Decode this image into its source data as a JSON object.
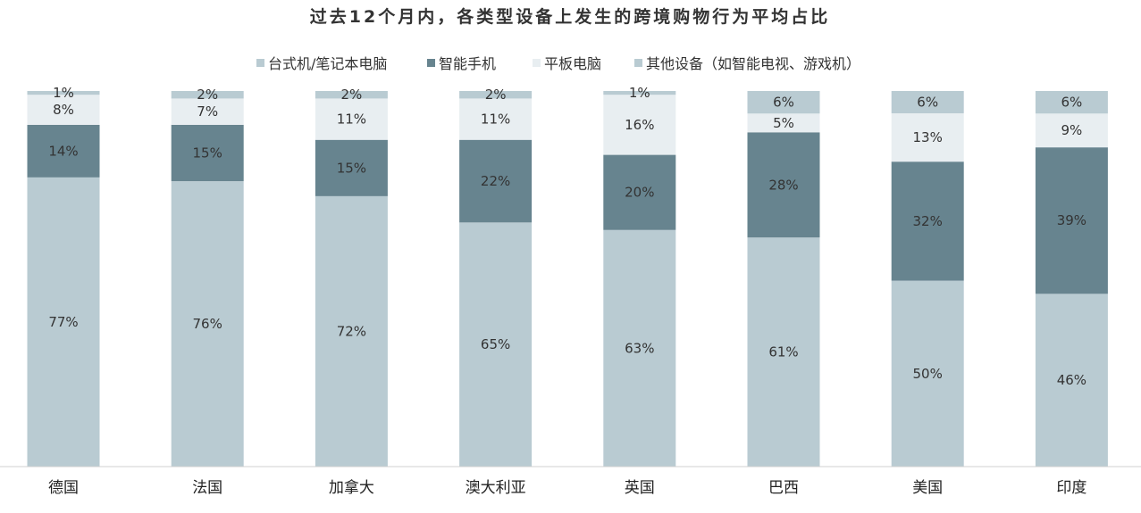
{
  "chart_data": {
    "type": "bar",
    "stacked": true,
    "title": "过去12个月内，各类型设备上发生的跨境购物行为平均占比",
    "categories": [
      "德国",
      "法国",
      "加拿大",
      "澳大利亚",
      "英国",
      "巴西",
      "美国",
      "印度"
    ],
    "series": [
      {
        "name": "台式机/笔记本电脑",
        "color": "#b9cbd2",
        "values": [
          77,
          76,
          72,
          65,
          63,
          61,
          50,
          46
        ],
        "labels": [
          "77%",
          "76%",
          "72%",
          "65%",
          "63%",
          "61%",
          "50%",
          "46%"
        ]
      },
      {
        "name": "智能手机",
        "color": "#67848f",
        "values": [
          14,
          15,
          15,
          22,
          20,
          28,
          32,
          39
        ],
        "labels": [
          "14%",
          "15%",
          "15%",
          "22%",
          "20%",
          "28%",
          "32%",
          "39%"
        ]
      },
      {
        "name": "平板电脑",
        "color": "#e8eef1",
        "values": [
          8,
          7,
          11,
          11,
          16,
          5,
          13,
          9
        ],
        "labels": [
          "8%",
          "7%",
          "11%",
          "11%",
          "16%",
          "5%",
          "13%",
          "9%"
        ]
      },
      {
        "name": "其他设备（如智能电视、游戏机）",
        "color": "#b9cbd2",
        "values": [
          1,
          2,
          2,
          2,
          1,
          6,
          6,
          6
        ],
        "labels": [
          "1%",
          "2%",
          "2%",
          "2%",
          "1%",
          "6%",
          "6%",
          "6%"
        ]
      }
    ],
    "ylim": [
      0,
      100
    ],
    "grid": false,
    "legend_position": "top"
  }
}
